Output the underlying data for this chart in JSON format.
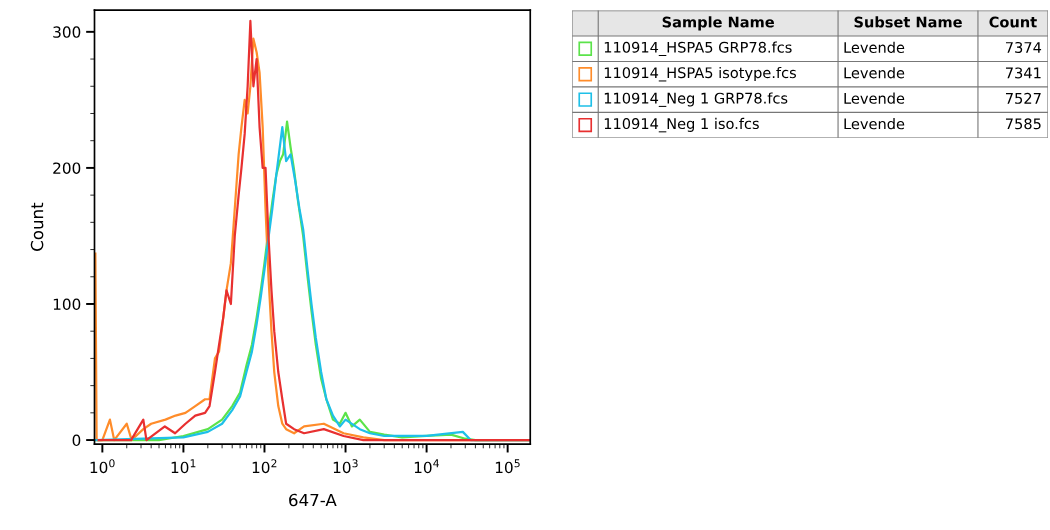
{
  "chart_data": {
    "type": "line",
    "xlabel": "647-A",
    "ylabel": "Count",
    "log": "x",
    "xlim": [
      0.8,
      190000
    ],
    "ylim": [
      -3,
      316
    ],
    "xticks": [
      {
        "value": 1,
        "label": "10$^{0}$"
      },
      {
        "value": 10,
        "label": "10$^{1}$"
      },
      {
        "value": 100,
        "label": "10$^{2}$"
      },
      {
        "value": 1000,
        "label": "10$^{3}$"
      },
      {
        "value": 10000,
        "label": "10$^{4}$"
      },
      {
        "value": 100000,
        "label": "10$^{5}$"
      }
    ],
    "yticks": [
      0,
      100,
      200,
      300
    ],
    "grid": false,
    "legend": "right",
    "marker": "none",
    "line_style": "solid",
    "annotations": [
      "Sample Name",
      "Subset Name",
      "Count",
      "Levende",
      "7374",
      "Levende",
      "7341",
      "Levende",
      "7527",
      "Levende",
      "7585"
    ],
    "series": [
      {
        "name": "110914_HSPA5 GRP78.fcs",
        "color": "#5be34a",
        "x": [
          0.82,
          5,
          10,
          20,
          30,
          40,
          50,
          60,
          70,
          80,
          90,
          100,
          110,
          125,
          140,
          155,
          170,
          190,
          210,
          230,
          260,
          300,
          340,
          380,
          430,
          500,
          580,
          700,
          850,
          1000,
          1200,
          1500,
          2000,
          3000,
          5000,
          10000,
          20000,
          30000,
          40000,
          190000
        ],
        "values": [
          0,
          0,
          3,
          8,
          15,
          25,
          35,
          55,
          70,
          90,
          110,
          130,
          150,
          175,
          195,
          205,
          210,
          234,
          215,
          200,
          175,
          150,
          120,
          95,
          70,
          45,
          30,
          15,
          12,
          20,
          10,
          15,
          6,
          4,
          2,
          3,
          4,
          1,
          0,
          0
        ]
      },
      {
        "name": "110914_HSPA5 isotype.fcs",
        "color": "#ff8c2a",
        "x": [
          0.82,
          0.85,
          1.0,
          1.24,
          1.4,
          2.0,
          2.3,
          3.2,
          4,
          6,
          8,
          10.6,
          14,
          18.5,
          21,
          24.5,
          27.5,
          31,
          34,
          38.5,
          43,
          48,
          52,
          57,
          62,
          67,
          73,
          80,
          87,
          95,
          103,
          112,
          122,
          132,
          148,
          166,
          185,
          232,
          308,
          540,
          946,
          1660,
          3000,
          190000
        ],
        "values": [
          137,
          0,
          0,
          15,
          0,
          12,
          0,
          8,
          12,
          15,
          18,
          20,
          25,
          30,
          30,
          60,
          65,
          90,
          110,
          130,
          170,
          210,
          230,
          250,
          240,
          260,
          295,
          285,
          270,
          230,
          170,
          120,
          80,
          50,
          25,
          12,
          8,
          5,
          10,
          12,
          5,
          2,
          0,
          0
        ]
      },
      {
        "name": "110914_Neg 1 GRP78.fcs",
        "color": "#1ec0e8",
        "x": [
          0.82,
          10,
          20,
          30,
          40,
          50,
          60,
          70,
          80,
          90,
          100,
          110,
          125,
          140,
          166,
          185,
          210,
          240,
          270,
          300,
          340,
          380,
          430,
          500,
          580,
          700,
          850,
          1000,
          1500,
          2000,
          3000,
          10000,
          28000,
          35000,
          190000
        ],
        "values": [
          0,
          2,
          6,
          12,
          22,
          32,
          50,
          65,
          85,
          105,
          125,
          145,
          170,
          195,
          230,
          205,
          210,
          190,
          170,
          155,
          125,
          100,
          75,
          50,
          30,
          18,
          10,
          15,
          8,
          5,
          3,
          3,
          6,
          0,
          0
        ]
      },
      {
        "name": "110914_Neg 1 iso.fcs",
        "color": "#e83030",
        "x": [
          0.9,
          2.26,
          3.2,
          3.5,
          5.9,
          7.9,
          10.6,
          14,
          18.5,
          21,
          24.5,
          27.5,
          31,
          34,
          38.5,
          43,
          48,
          52,
          57,
          62,
          67,
          73,
          80,
          87,
          95,
          103,
          112,
          122,
          132,
          148,
          166,
          185,
          232,
          308,
          540,
          946,
          1660,
          190000
        ],
        "values": [
          0,
          0,
          15,
          0,
          10,
          5,
          12,
          18,
          20,
          25,
          50,
          70,
          90,
          110,
          100,
          150,
          180,
          200,
          225,
          260,
          308,
          260,
          280,
          230,
          200,
          200,
          150,
          110,
          80,
          50,
          30,
          12,
          8,
          5,
          8,
          3,
          0,
          0
        ]
      }
    ]
  }
}
